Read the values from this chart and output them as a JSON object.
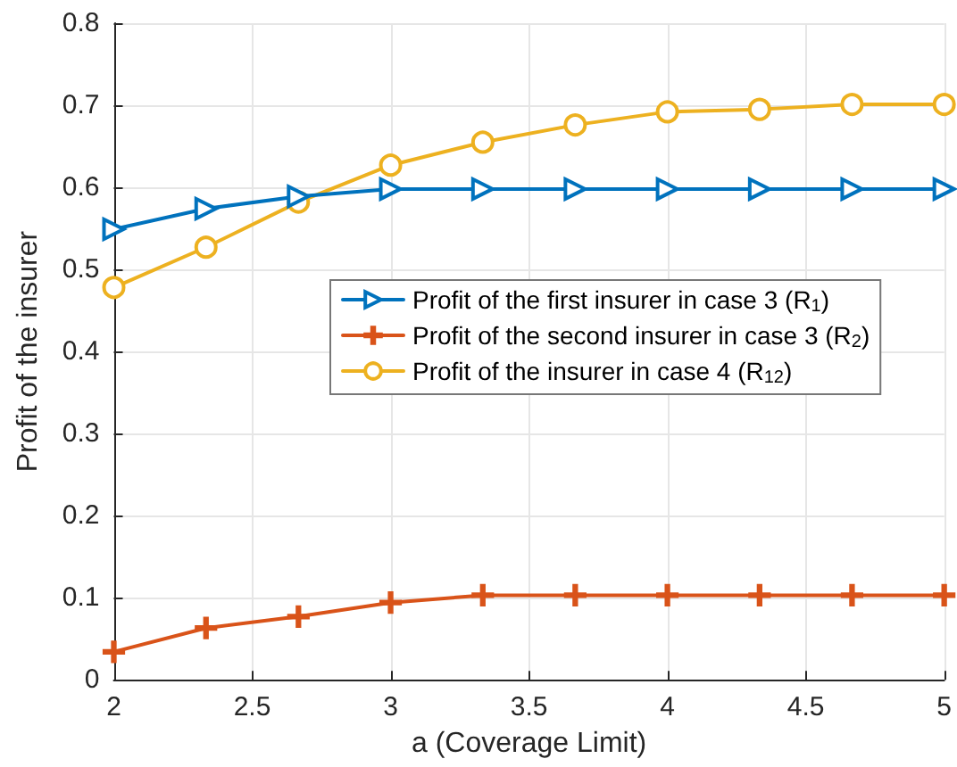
{
  "chart_data": {
    "type": "line",
    "xlabel": "a (Coverage Limit)",
    "ylabel": "Profit of the insurer",
    "x": [
      2,
      2.333,
      2.667,
      3,
      3.333,
      3.667,
      4,
      4.333,
      4.667,
      5
    ],
    "series": [
      {
        "name": "Profit of the first insurer in case 3 (R$_{1}$)",
        "color": "#0072bd",
        "marker": "triangle",
        "values": [
          0.549,
          0.574,
          0.589,
          0.598,
          0.598,
          0.598,
          0.598,
          0.598,
          0.598,
          0.598
        ]
      },
      {
        "name": "Profit of the second insurer in case 3 (R$_{2}$)",
        "color": "#d95319",
        "marker": "cross",
        "values": [
          0.034,
          0.063,
          0.077,
          0.094,
          0.103,
          0.103,
          0.103,
          0.103,
          0.103,
          0.103
        ]
      },
      {
        "name": "Profit of the insurer in case 4 (R$_{12}$)",
        "color": "#edb120",
        "marker": "circle",
        "values": [
          0.478,
          0.527,
          0.582,
          0.627,
          0.655,
          0.676,
          0.692,
          0.695,
          0.701,
          0.701
        ]
      }
    ],
    "xlim": [
      2,
      5
    ],
    "xticks": [
      2,
      2.5,
      3,
      3.5,
      4,
      4.5,
      5
    ],
    "ylim": [
      0,
      0.8
    ],
    "yticks": [
      0,
      0.1,
      0.2,
      0.3,
      0.4,
      0.5,
      0.6,
      0.7,
      0.8
    ],
    "grid": true,
    "legend": "right",
    "line_style": "solid"
  }
}
